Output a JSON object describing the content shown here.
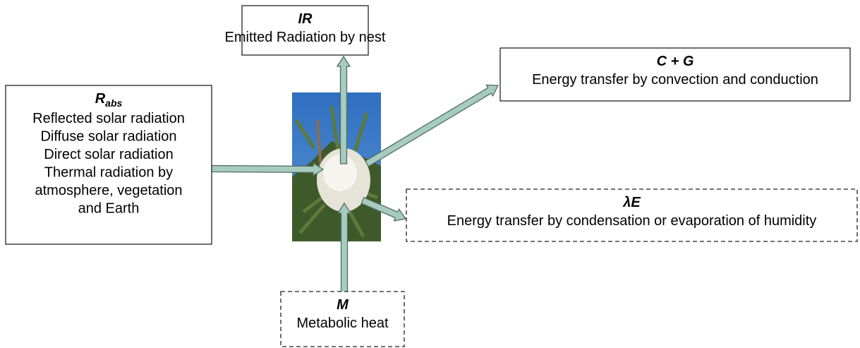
{
  "nodes": [
    {
      "symbol": "IR",
      "lines": [
        "Emitted Radiation by nest"
      ]
    },
    {
      "symbol": "C + G",
      "lines": [
        "Energy transfer by convection and conduction"
      ]
    },
    {
      "symbol": "R",
      "subscript": "abs",
      "lines": [
        "Reflected solar radiation",
        "Diffuse solar radiation",
        "Direct solar radiation",
        "Thermal radiation by",
        "atmosphere, vegetation",
        "and Earth"
      ]
    },
    {
      "symbol": "λE",
      "lines": [
        "Energy transfer by condensation or evaporation of humidity"
      ]
    },
    {
      "symbol": "M",
      "lines": [
        "Metabolic heat"
      ]
    }
  ]
}
